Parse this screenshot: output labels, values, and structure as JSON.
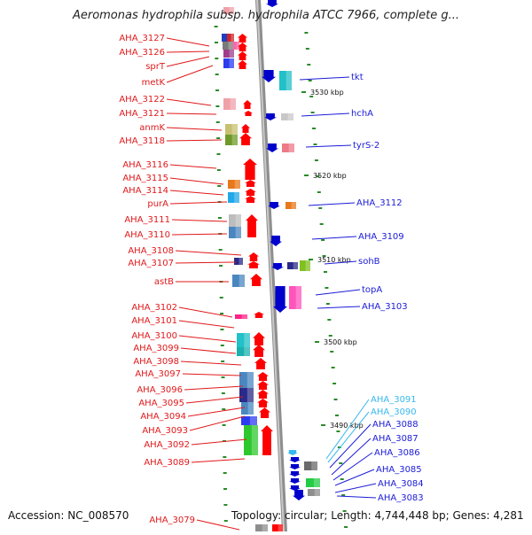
{
  "title": "Aeromonas hydrophila subsp. hydrophila ATCC 7966, complete g...",
  "footer": {
    "accession": "Accession: NC_008570",
    "summary": "Topology: circular; Length: 4,744,448 bp; Genes: 4,281"
  },
  "ruler_ticks": [
    "3530 kbp",
    "3520 kbp",
    "3510 kbp",
    "3500 kbp",
    "3490 kbp"
  ],
  "colors": {
    "left_labels": "#e0191b",
    "right_labels": "#1b1bd8",
    "highlight_labels": "#38b8ee",
    "forward_strand": "#ff0000",
    "reverse_strand": "#0000ff",
    "backbone": "#a0a0a0"
  },
  "left_labels": [
    "AHA_3127",
    "AHA_3126",
    "sprT",
    "metK",
    "AHA_3122",
    "AHA_3121",
    "anmK",
    "AHA_3118",
    "AHA_3116",
    "AHA_3115",
    "AHA_3114",
    "purA",
    "AHA_3111",
    "AHA_3110",
    "AHA_3108",
    "AHA_3107",
    "astB",
    "AHA_3102",
    "AHA_3101",
    "AHA_3100",
    "AHA_3099",
    "AHA_3098",
    "AHA_3097",
    "AHA_3096",
    "AHA_3095",
    "AHA_3094",
    "AHA_3093",
    "AHA_3092",
    "AHA_3089",
    "AHA_3079"
  ],
  "right_labels": [
    "tkt",
    "hchA",
    "tyrS-2",
    "AHA_3112",
    "AHA_3109",
    "sohB",
    "topA",
    "AHA_3103",
    "AHA_3091",
    "AHA_3090",
    "AHA_3088",
    "AHA_3087",
    "AHA_3086",
    "AHA_3085",
    "AHA_3084",
    "AHA_3083"
  ]
}
